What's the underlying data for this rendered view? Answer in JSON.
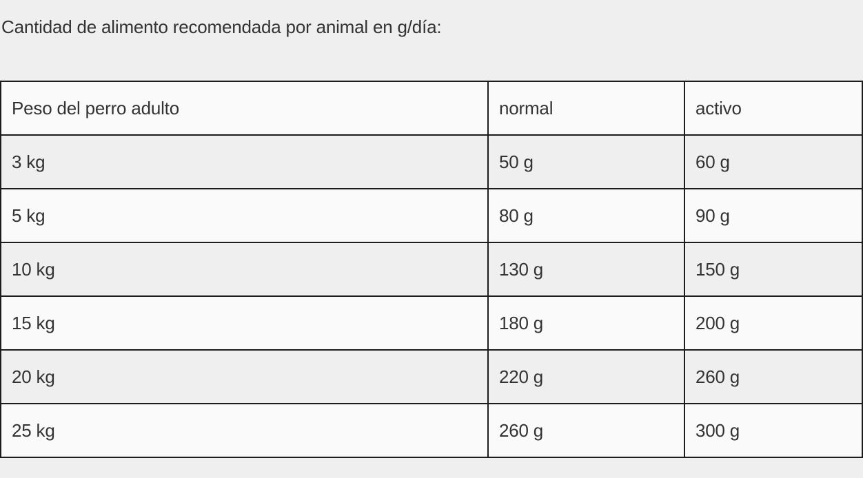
{
  "intro": "Cantidad de alimento recomendada por animal en g/día:",
  "table": {
    "headers": [
      "Peso del perro adulto",
      "normal",
      "activo"
    ],
    "rows": [
      [
        "3 kg",
        "50 g",
        "60 g"
      ],
      [
        "5 kg",
        "80 g",
        "90 g"
      ],
      [
        "10 kg",
        "130 g",
        "150 g"
      ],
      [
        "15 kg",
        "180 g",
        "200 g"
      ],
      [
        "20 kg",
        "220 g",
        "260 g"
      ],
      [
        "25 kg",
        "260 g",
        "300 g"
      ]
    ]
  }
}
